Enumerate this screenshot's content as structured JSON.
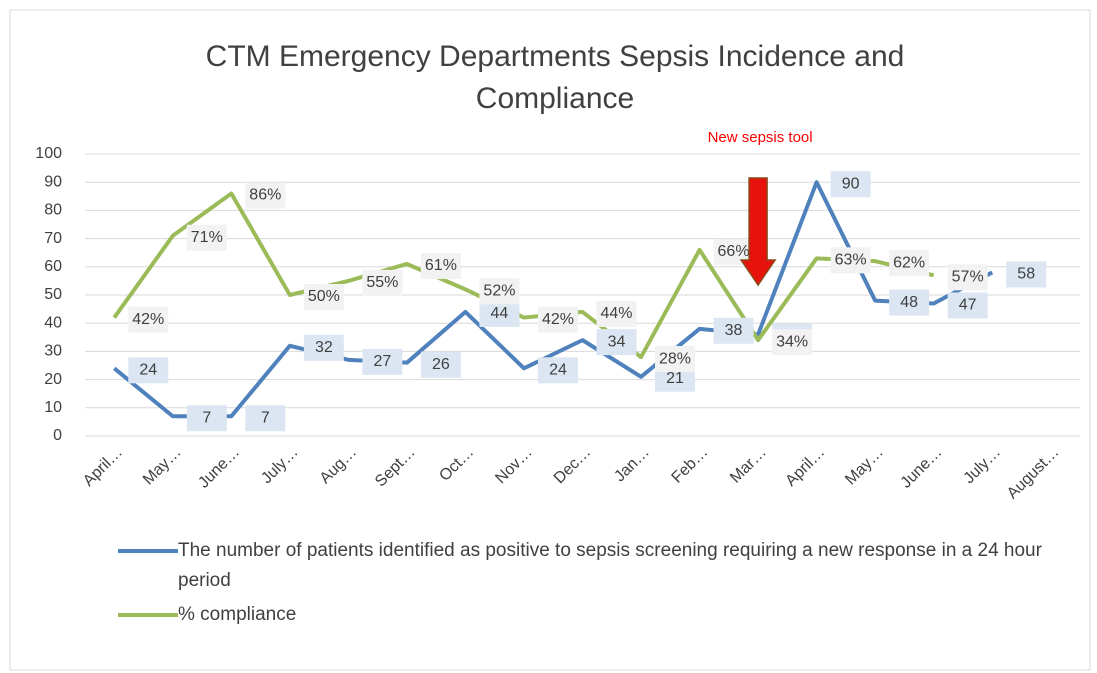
{
  "chart_data": {
    "type": "line",
    "title": "CTM Emergency Departments Sepsis Incidence and Compliance",
    "categories": [
      "April…",
      "May…",
      "June…",
      "July…",
      "Aug…",
      "Sept…",
      "Oct…",
      "Nov…",
      "Dec…",
      "Jan…",
      "Feb…",
      "Mar…",
      "April…",
      "May…",
      "June…",
      "July…",
      "August…"
    ],
    "series": [
      {
        "name": "The number of patients identified as positive to sepsis screening requiring a new response in a 24 hour period",
        "color": "#4f81bd",
        "values": [
          24,
          7,
          7,
          32,
          27,
          26,
          44,
          24,
          34,
          21,
          38,
          36,
          90,
          48,
          47,
          58,
          null
        ]
      },
      {
        "name": "% compliance",
        "color": "#9bbb59",
        "values": [
          42,
          71,
          86,
          50,
          55,
          61,
          52,
          42,
          44,
          28,
          66,
          34,
          63,
          62,
          57,
          null,
          null
        ],
        "value_labels": [
          "42%",
          "71%",
          "86%",
          "50%",
          "55%",
          "61%",
          "52%",
          "42%",
          "44%",
          "28%",
          "66%",
          "34%",
          "63%",
          "62%",
          "57%",
          null,
          null
        ]
      }
    ],
    "ylim": [
      0,
      100
    ],
    "yticks": [
      0,
      10,
      20,
      30,
      40,
      50,
      60,
      70,
      80,
      90,
      100
    ],
    "grid": true,
    "annotations": [
      {
        "text": "New sepsis tool",
        "category": 11
      }
    ]
  }
}
